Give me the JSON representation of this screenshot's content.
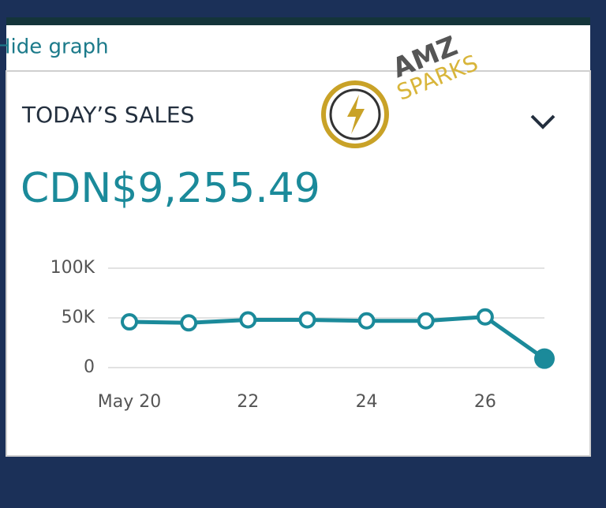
{
  "header": {
    "toggle": "Hide graph"
  },
  "watermark": {
    "line1": "AMZ",
    "line2": "SPARKS"
  },
  "card": {
    "title": "TODAY’S SALES",
    "amount": "CDN$9,255.49"
  },
  "chart_data": {
    "type": "line",
    "categories": [
      "May 20",
      null,
      "22",
      null,
      "24",
      null,
      "26",
      null
    ],
    "series": [
      {
        "color": "#1b8a9a",
        "values": [
          46000,
          45000,
          48000,
          48000,
          47000,
          47000,
          51000,
          9000
        ]
      }
    ],
    "ylim": [
      0,
      100000
    ],
    "yticks": [
      0,
      {
        "value": 50000,
        "label": "50K"
      },
      {
        "value": 100000,
        "label": "100K"
      }
    ],
    "grid": true
  }
}
